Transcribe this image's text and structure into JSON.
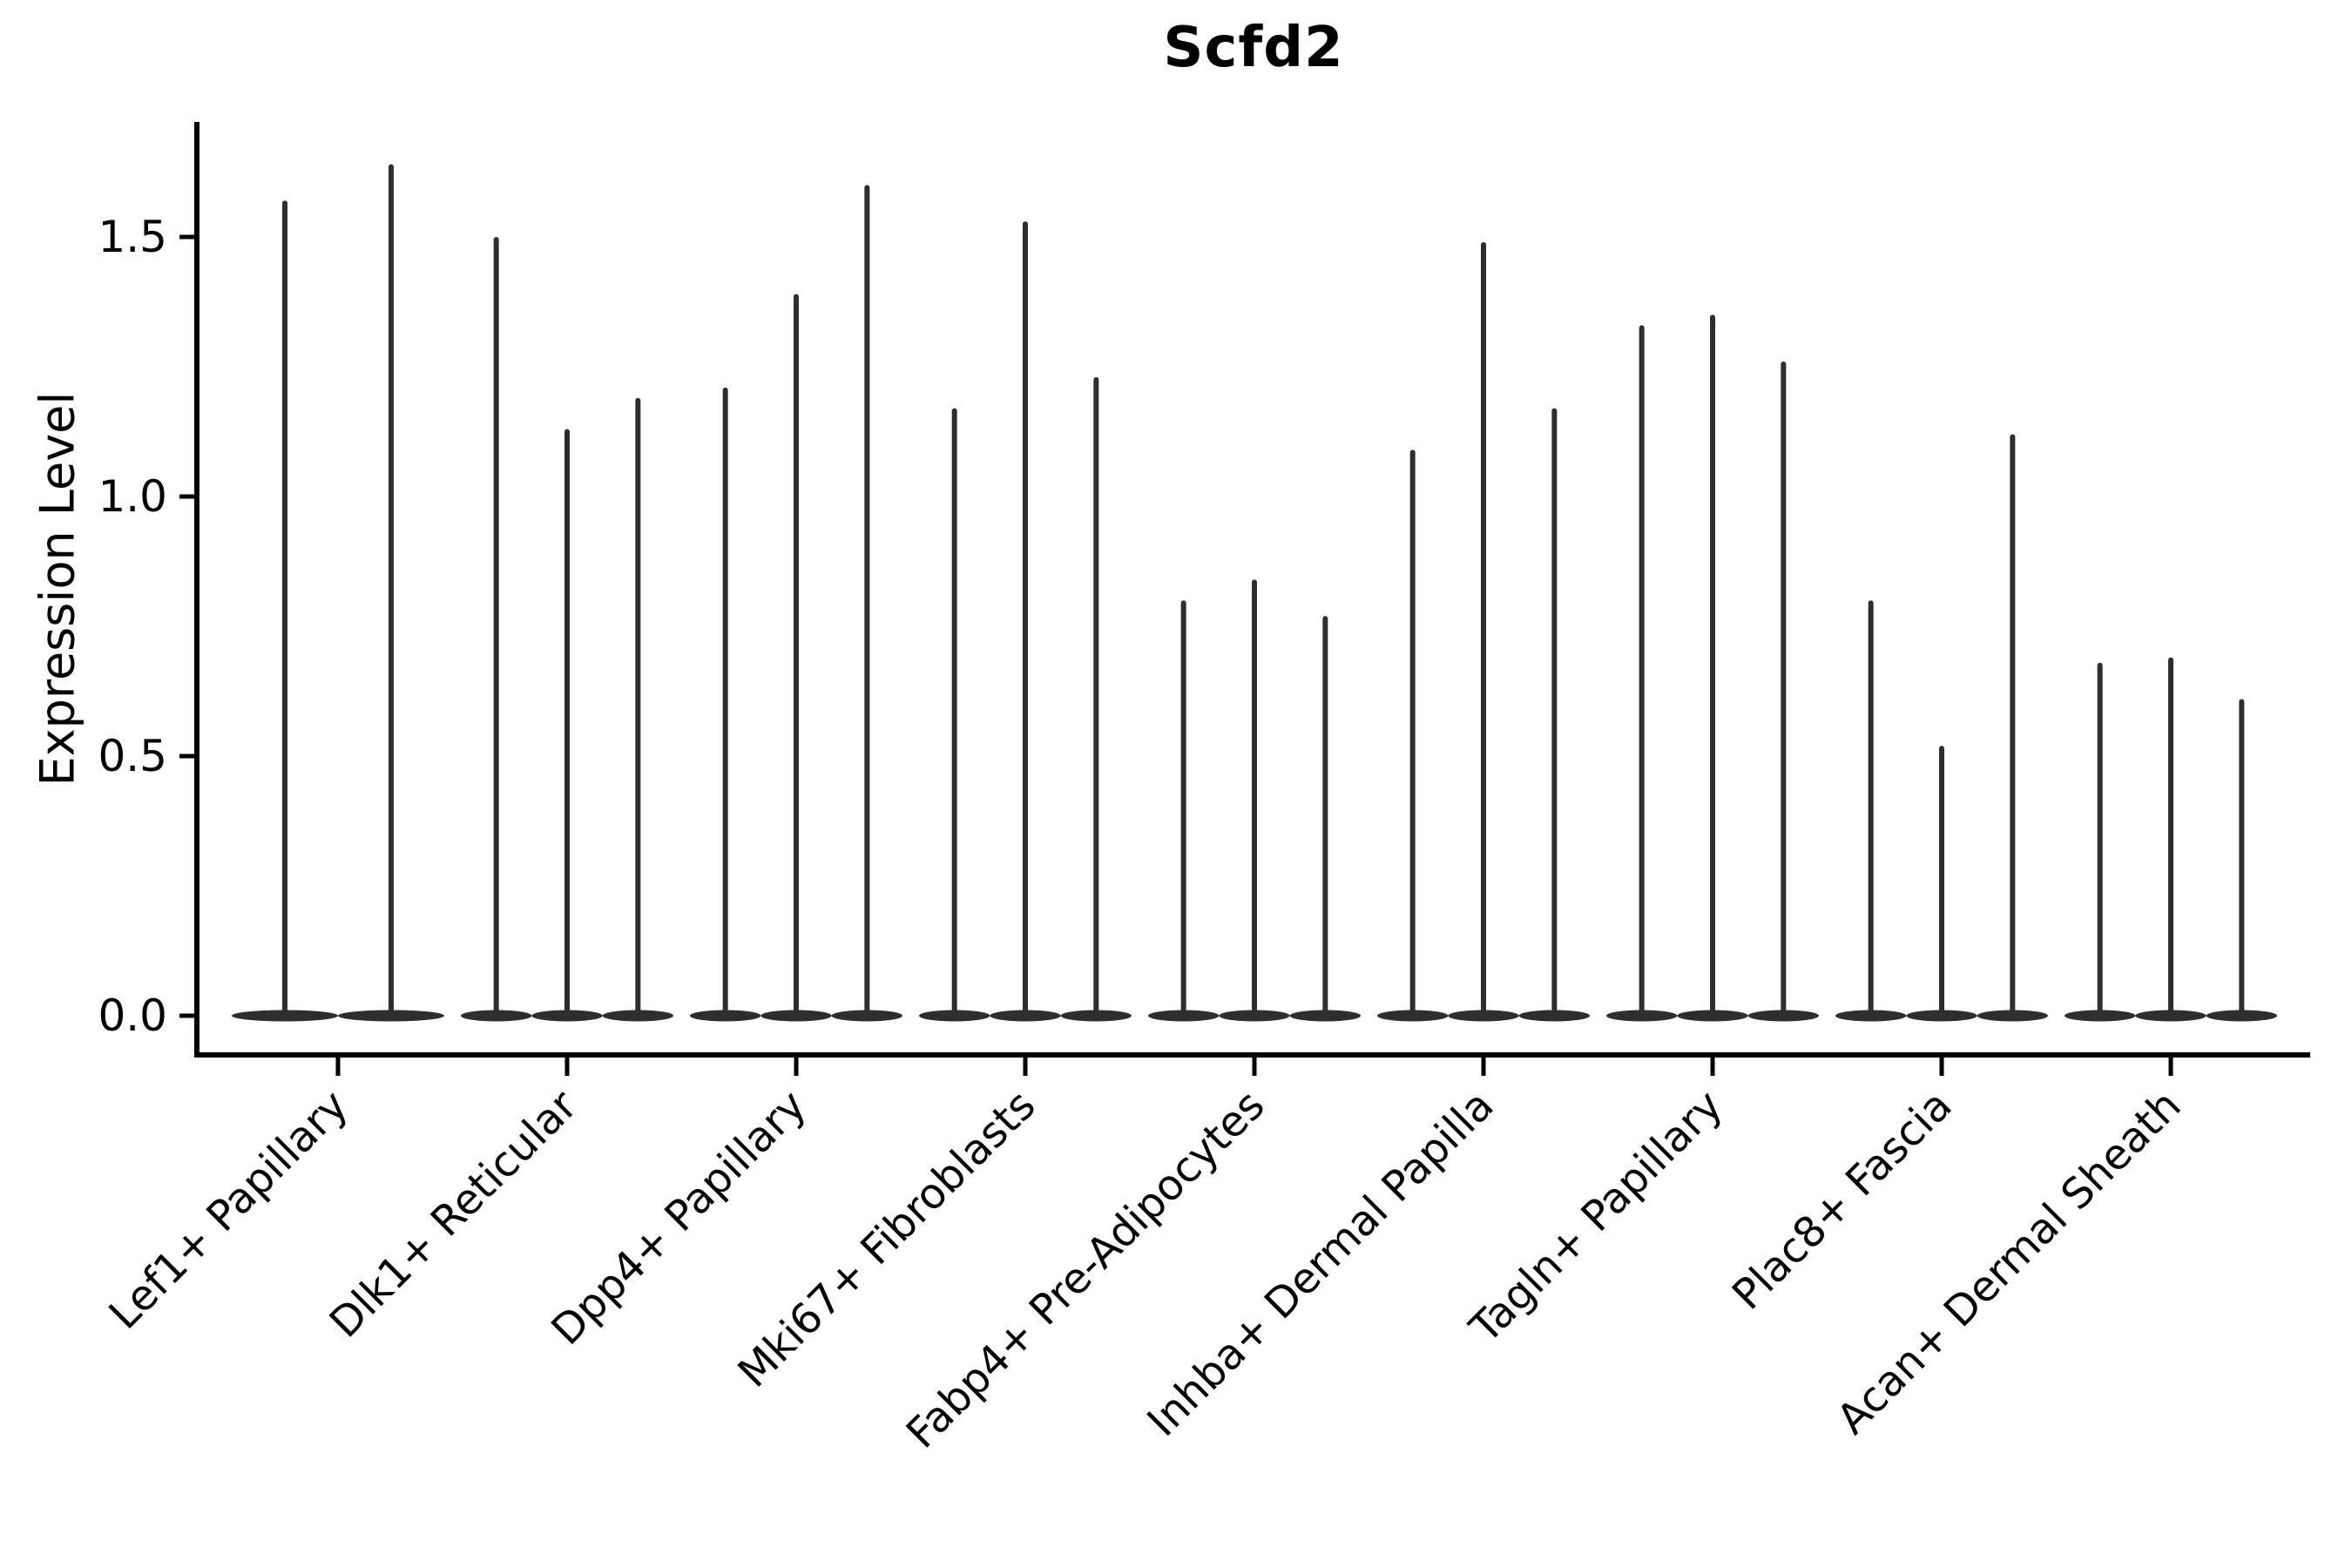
{
  "title": "Scfd2",
  "y_axis": {
    "label": "Expression Level",
    "tick_labels": [
      "0.0",
      "0.5",
      "1.0",
      "1.5"
    ],
    "tick_values": [
      0.0,
      0.5,
      1.0,
      1.5
    ]
  },
  "colors": {
    "violin": "#2e2e2e",
    "axis": "#000000",
    "text": "#000000",
    "background": "#ffffff"
  },
  "chart_data": {
    "type": "violin",
    "title": "Scfd2",
    "xlabel": "",
    "ylabel": "Expression Level",
    "ylim": [
      -0.07,
      1.72
    ],
    "yticks": [
      0.0,
      0.5,
      1.0,
      1.5
    ],
    "grid": false,
    "legend_position": "none",
    "x_tick_rotation": 45,
    "description": "Needle-thin violins: nearly all density is a flat lobe at 0 with a thin spike rising to each violin's maximum expression value.",
    "categories": [
      "Lef1+ Papillary",
      "Dlk1+ Reticular",
      "Dpp4+ Papillary",
      "Mki67+ Fibroblasts",
      "Fabp4+ Pre-Adipocytes",
      "Inhba+ Dermal Papilla",
      "Tagln+ Papillary",
      "Plac8+ Fascia",
      "Acan+ Dermal Sheath"
    ],
    "groups": [
      {
        "category": "Lef1+ Papillary",
        "violin_maxima": [
          1.57,
          1.64
        ]
      },
      {
        "category": "Dlk1+ Reticular",
        "violin_maxima": [
          1.5,
          1.13,
          1.19
        ]
      },
      {
        "category": "Dpp4+ Papillary",
        "violin_maxima": [
          1.21,
          1.39,
          1.6
        ]
      },
      {
        "category": "Mki67+ Fibroblasts",
        "violin_maxima": [
          1.17,
          1.53,
          1.23
        ]
      },
      {
        "category": "Fabp4+ Pre-Adipocytes",
        "violin_maxima": [
          0.8,
          0.84,
          0.77
        ]
      },
      {
        "category": "Inhba+ Dermal Papilla",
        "violin_maxima": [
          1.09,
          1.49,
          1.17
        ]
      },
      {
        "category": "Tagln+ Papillary",
        "violin_maxima": [
          1.33,
          1.35,
          1.26
        ]
      },
      {
        "category": "Plac8+ Fascia",
        "violin_maxima": [
          0.8,
          0.52,
          1.12
        ]
      },
      {
        "category": "Acan+ Dermal Sheath",
        "violin_maxima": [
          0.68,
          0.69,
          0.61
        ]
      }
    ]
  }
}
